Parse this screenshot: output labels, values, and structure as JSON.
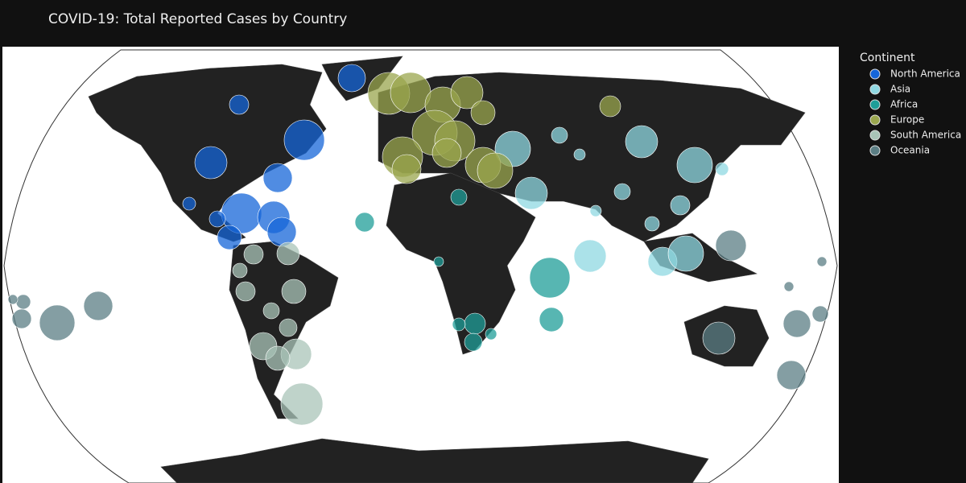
{
  "title": "COVID-19: Total Reported Cases by Country",
  "legend": {
    "title": "Continent",
    "items": [
      {
        "label": "North America",
        "color": "#1565d8"
      },
      {
        "label": "Asia",
        "color": "#8fd8e2"
      },
      {
        "label": "Africa",
        "color": "#1f9e98"
      },
      {
        "label": "Europe",
        "color": "#99a64e"
      },
      {
        "label": "South America",
        "color": "#a9c4b8"
      },
      {
        "label": "Oceania",
        "color": "#5b7e84"
      }
    ]
  }
}
